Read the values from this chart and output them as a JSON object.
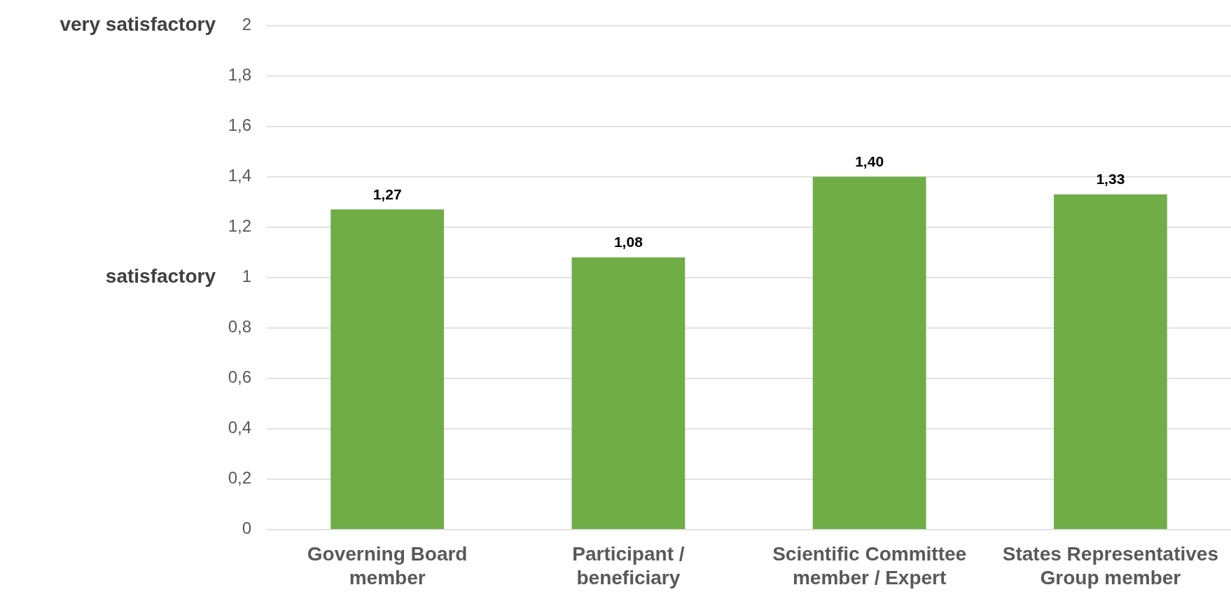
{
  "chart_data": {
    "type": "bar",
    "categories": [
      "Governing Board member",
      "Participant / beneficiary",
      "Scientific Committee member / Expert",
      "States Representatives Group member"
    ],
    "values": [
      1.27,
      1.08,
      1.4,
      1.33
    ],
    "value_labels": [
      "1,27",
      "1,08",
      "1,40",
      "1,33"
    ],
    "color": "#70ad47",
    "ylim": [
      0,
      2
    ],
    "yticks": [
      0,
      {
        "value": 0.2,
        "label": "0,2"
      },
      {
        "value": 0.4,
        "label": "0,4"
      },
      {
        "value": 0.6,
        "label": "0,6"
      },
      {
        "value": 0.8,
        "label": "0,8"
      },
      1,
      {
        "value": 1.2,
        "label": "1,2"
      },
      {
        "value": 1.4,
        "label": "1,4"
      },
      {
        "value": 1.6,
        "label": "1,6"
      },
      {
        "value": 1.8,
        "label": "1,8"
      },
      2
    ],
    "annotations": [
      "very satisfactory",
      "satisfactory"
    ],
    "grid": "y",
    "legend": false
  }
}
